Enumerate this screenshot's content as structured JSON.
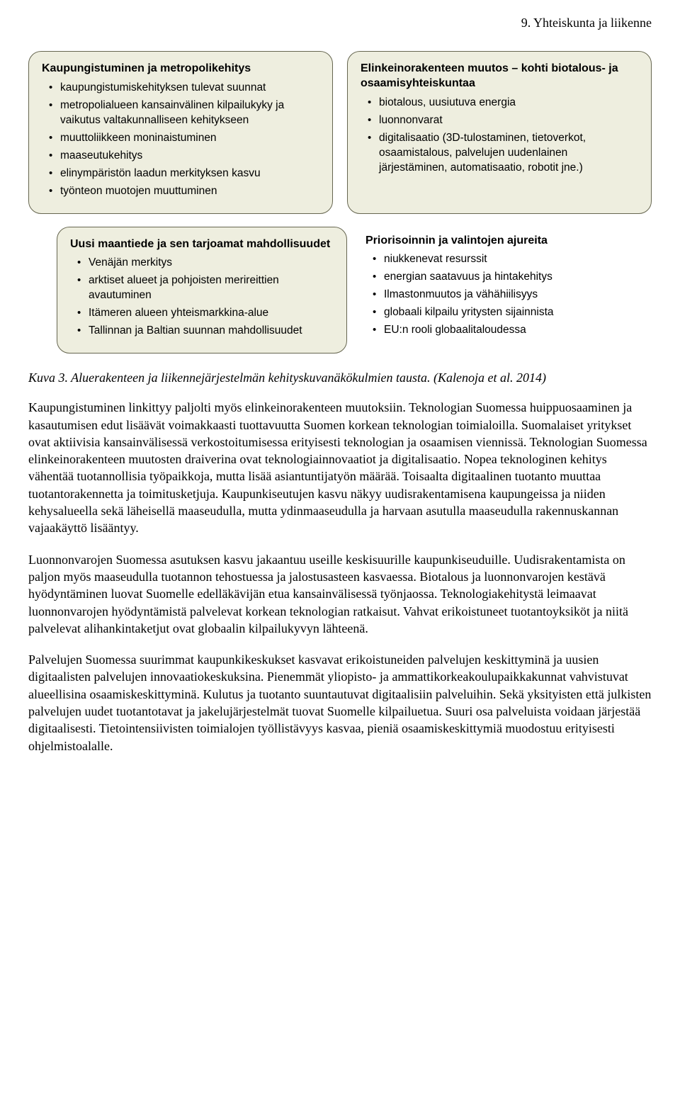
{
  "header": "9. Yhteiskunta ja liikenne",
  "box1": {
    "title": "Kaupungistuminen ja metropolikehitys",
    "items": [
      "kaupungistumiskehityksen tulevat suunnat",
      "metropolialueen kansainvälinen kilpailukyky ja vaikutus valtakunnalliseen kehitykseen",
      "muuttoliikkeen moninaistuminen",
      "maaseutukehitys",
      "elinympäristön laadun merkityksen kasvu",
      "työnteon muotojen muuttuminen"
    ]
  },
  "box2": {
    "title": "Elinkeinorakenteen muutos – kohti biotalous- ja osaamisyhteiskuntaa",
    "items": [
      "biotalous, uusiutuva energia",
      "luonnonvarat",
      "digitalisaatio (3D-tulostaminen, tietoverkot, osaamistalous, palvelujen uudenlainen järjestäminen, automatisaatio, robotit jne.)"
    ]
  },
  "box3": {
    "title": "Uusi maantiede ja sen tarjoamat mahdollisuudet",
    "items": [
      "Venäjän merkitys",
      "arktiset alueet ja pohjoisten merireittien avautuminen",
      "Itämeren alueen yhteismarkkina-alue",
      "Tallinnan ja Baltian suunnan mahdollisuudet"
    ]
  },
  "box4": {
    "title": "Priorisoinnin ja valintojen ajureita",
    "items": [
      "niukkenevat resurssit",
      "energian saatavuus ja hintakehitys",
      "Ilmastonmuutos ja vähähiilisyys",
      "globaali kilpailu yritysten sijainnista",
      "EU:n rooli globaalitaloudessa"
    ]
  },
  "caption": "Kuva 3. Aluerakenteen ja liikennejärjestelmän kehityskuvanäkökulmien tausta. (Kalenoja et al. 2014)",
  "para1": "Kaupungistuminen linkittyy paljolti myös elinkeinorakenteen muutoksiin. Teknologian Suomessa huippuosaaminen ja kasautumisen edut lisäävät voimakkaasti tuottavuutta Suomen korkean teknologian toimialoilla. Suomalaiset yritykset ovat aktiivisia kansainvälisessä verkostoitumisessa erityisesti teknologian ja osaamisen viennissä. Teknologian Suomessa elinkeinorakenteen muutosten draiverina ovat teknologiainnovaatiot ja digitalisaatio. Nopea teknologinen kehitys vähentää tuotannollisia työpaikkoja, mutta lisää asiantuntijatyön määrää. Toisaalta digitaalinen tuotanto muuttaa tuotantorakennetta ja toimitusketjuja. Kaupunkiseutujen kasvu näkyy uudisrakentamisena kaupungeissa ja niiden kehysalueella sekä läheisellä maaseudulla, mutta ydinmaaseudulla ja harvaan asutulla maaseudulla rakennuskannan vajaakäyttö lisääntyy.",
  "para2": "Luonnonvarojen Suomessa asutuksen kasvu jakaantuu useille keskisuurille kaupunkiseuduille. Uudisrakentamista on paljon myös maaseudulla tuotannon tehostuessa ja jalostusasteen kasvaessa. Biotalous ja luonnonvarojen kestävä hyödyntäminen luovat Suomelle edelläkävijän etua kansainvälisessä työnjaossa. Teknologiakehitystä leimaavat luonnonvarojen hyödyntämistä palvelevat korkean teknologian ratkaisut. Vahvat erikoistuneet tuotantoyksiköt ja niitä palvelevat alihankintaketjut ovat globaalin kilpailukyvyn lähteenä.",
  "para3": "Palvelujen Suomessa suurimmat kaupunkikeskukset kasvavat erikoistuneiden palvelujen keskittyminä ja uusien digitaalisten palvelujen innovaatiokeskuksina. Pienemmät yliopisto- ja ammattikorkeakoulupaikkakunnat vahvistuvat alueellisina osaamiskeskittyminä. Kulutus ja tuotanto suuntautuvat digitaalisiin palveluihin. Sekä yksityisten että julkisten palvelujen uudet tuotantotavat ja jakelujärjestelmät tuovat Suomelle kilpailuetua. Suuri osa palveluista voidaan järjestää digitaalisesti. Tietointensiivisten toimialojen työllistävyys kasvaa, pieniä osaamiskeskittymiä muodostuu erityisesti ohjelmistoalalle.",
  "colors": {
    "box_bg": "#eeeedf",
    "box_border": "#666650",
    "page_bg": "#ffffff",
    "text_color": "#000000"
  }
}
